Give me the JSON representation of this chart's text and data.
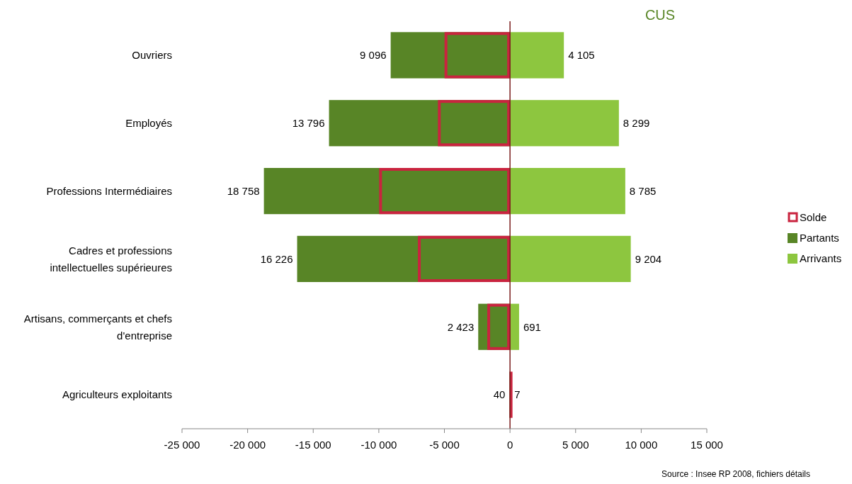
{
  "chart_data": {
    "type": "bar",
    "orientation": "horizontal",
    "title": "CUS",
    "categories": [
      "Ouvriers",
      "Employés",
      "Professions Intermédiaires",
      "Cadres et professions intellectuelles supérieures",
      "Artisans, commerçants et chefs d'entreprise",
      "Agriculteurs exploitants"
    ],
    "series": [
      {
        "name": "Partants",
        "color": "#588526",
        "base": [
          -9096,
          -13796,
          -18758,
          -16226,
          -2423,
          -40
        ],
        "values": [
          9096,
          13796,
          18758,
          16226,
          2423,
          40
        ],
        "value_labels": [
          "9 096",
          "13 796",
          "18 758",
          "16 226",
          "2 423",
          "40"
        ]
      },
      {
        "name": "Arrivants",
        "color": "#8dc63f",
        "values": [
          4105,
          8299,
          8785,
          9204,
          691,
          7
        ],
        "value_labels": [
          "4 105",
          "8 299",
          "8 785",
          "9 204",
          "691",
          "7"
        ]
      },
      {
        "name": "Solde",
        "color": "#c9243f",
        "line_style": "solid",
        "values": [
          -4991,
          -5497,
          -9973,
          -7022,
          -1732,
          -33
        ]
      }
    ],
    "xlim": [
      -25000,
      15000
    ],
    "xticks": [
      {
        "value": -25000,
        "label": "-25 000"
      },
      {
        "value": -20000,
        "label": "-20 000"
      },
      {
        "value": -15000,
        "label": "-15 000"
      },
      {
        "value": -10000,
        "label": "-10 000"
      },
      {
        "value": -5000,
        "label": "-5 000"
      },
      0,
      {
        "value": 5000,
        "label": "5 000"
      },
      {
        "value": 10000,
        "label": "10 000"
      },
      {
        "value": 15000,
        "label": "15 000"
      }
    ],
    "legend": "right",
    "ref_lines": [
      {
        "axis": "x",
        "value": 0,
        "color": "#7a1c1c"
      }
    ],
    "annotations": [
      "Source : Insee RP 2008, fichiers détails"
    ]
  }
}
